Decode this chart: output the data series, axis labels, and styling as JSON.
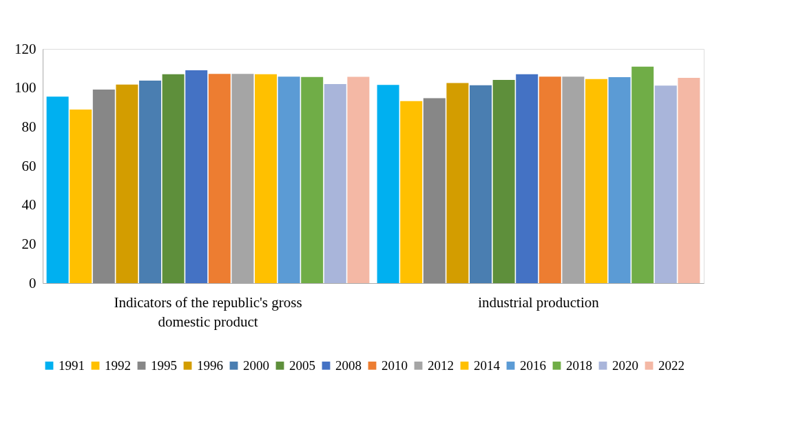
{
  "chart_data": {
    "type": "bar",
    "categories": [
      "Indicators of the republic's gross domestic product",
      "industrial production"
    ],
    "series": [
      {
        "name": "1991",
        "color": "#00b0f0",
        "values": [
          95.6,
          101.6
        ]
      },
      {
        "name": "1992",
        "color": "#ffc000",
        "values": [
          88.9,
          93.3
        ]
      },
      {
        "name": "1995",
        "color": "#878787",
        "values": [
          99.2,
          94.8
        ]
      },
      {
        "name": "1996",
        "color": "#d39d00",
        "values": [
          101.7,
          102.5
        ]
      },
      {
        "name": "2000",
        "color": "#4a7eb1",
        "values": [
          103.8,
          101.4
        ]
      },
      {
        "name": "2005",
        "color": "#5e8f3b",
        "values": [
          107.0,
          104.1
        ]
      },
      {
        "name": "2008",
        "color": "#4472c4",
        "values": [
          109.1,
          107.0
        ]
      },
      {
        "name": "2010",
        "color": "#ed7d31",
        "values": [
          107.2,
          105.8
        ]
      },
      {
        "name": "2012",
        "color": "#a5a5a5",
        "values": [
          107.2,
          105.8
        ]
      },
      {
        "name": "2014",
        "color": "#ffc000",
        "values": [
          107.0,
          104.6
        ]
      },
      {
        "name": "2016",
        "color": "#5b9bd5",
        "values": [
          105.8,
          105.5
        ]
      },
      {
        "name": "2018",
        "color": "#70ad47",
        "values": [
          105.6,
          110.9
        ]
      },
      {
        "name": "2020",
        "color": "#a9b5da",
        "values": [
          102.0,
          101.2
        ]
      },
      {
        "name": "2022",
        "color": "#f4b8a5",
        "values": [
          105.7,
          105.2
        ]
      }
    ],
    "ylim": [
      0,
      120
    ],
    "yticks": [
      0,
      20,
      40,
      60,
      80,
      100,
      120
    ],
    "grid": false,
    "legend": "bottom"
  }
}
